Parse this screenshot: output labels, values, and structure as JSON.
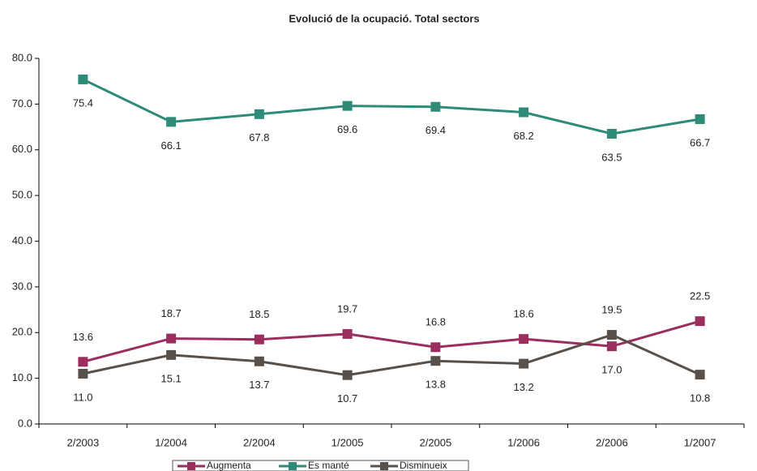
{
  "chart_data": {
    "type": "line",
    "title": "Evolució de la ocupació. Total sectors",
    "categories": [
      "2/2003",
      "1/2004",
      "2/2004",
      "1/2005",
      "2/2005",
      "1/2006",
      "2/2006",
      "1/2007"
    ],
    "series": [
      {
        "name": "Augmenta",
        "color": "#9b2d5f",
        "values": [
          13.6,
          18.7,
          18.5,
          19.7,
          16.8,
          18.6,
          17.0,
          22.5
        ],
        "value_labels": [
          "13.6",
          "18.7",
          "18.5",
          "19.7",
          "16.8",
          "18.6",
          "17.0",
          "22.5"
        ]
      },
      {
        "name": "Es manté",
        "color": "#2e8b7a",
        "values": [
          75.4,
          66.1,
          67.8,
          69.6,
          69.4,
          68.2,
          63.5,
          66.7
        ],
        "value_labels": [
          "75.4",
          "66.1",
          "67.8",
          "69.6",
          "69.4",
          "68.2",
          "63.5",
          "66.7"
        ]
      },
      {
        "name": "Disminueix",
        "color": "#58504a",
        "values": [
          11.0,
          15.1,
          13.7,
          10.7,
          13.8,
          13.2,
          19.5,
          10.8
        ],
        "value_labels": [
          "11.0",
          "15.1",
          "13.7",
          "10.7",
          "13.8",
          "13.2",
          "19.5",
          "10.8"
        ]
      }
    ],
    "ylim": [
      0,
      80
    ],
    "yticks": [
      {
        "value": 0,
        "label": "0.0"
      },
      {
        "value": 10,
        "label": "10.0"
      },
      {
        "value": 20,
        "label": "20.0"
      },
      {
        "value": 30,
        "label": "30.0"
      },
      {
        "value": 40,
        "label": "40.0"
      },
      {
        "value": 50,
        "label": "50.0"
      },
      {
        "value": 60,
        "label": "60.0"
      },
      {
        "value": 70,
        "label": "70.0"
      },
      {
        "value": 80,
        "label": "80.0"
      }
    ],
    "legend": "bottom"
  }
}
